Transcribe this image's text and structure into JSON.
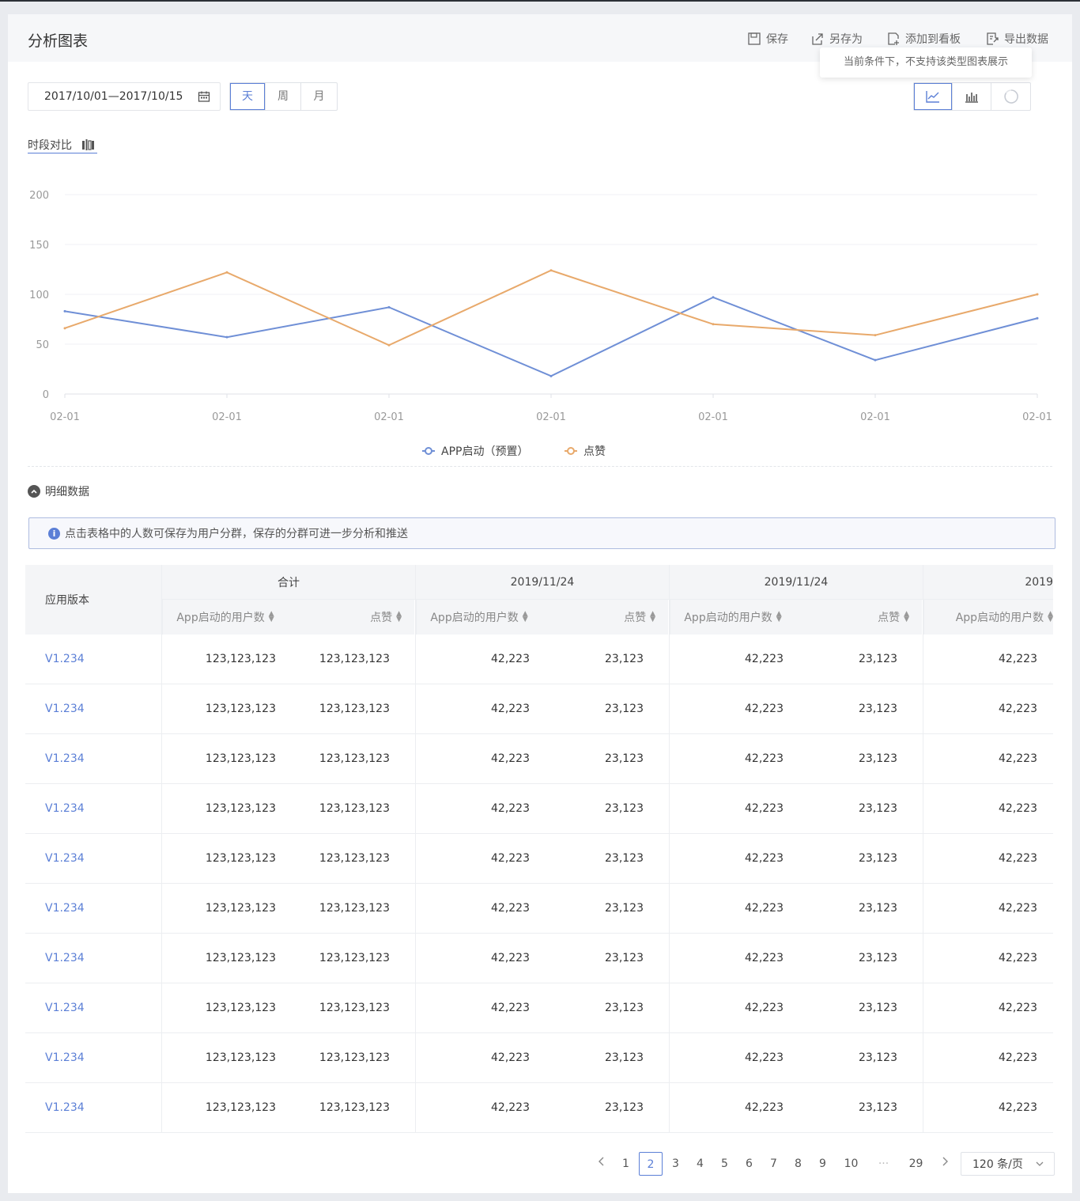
{
  "header": {
    "title": "分析图表",
    "actions": [
      {
        "label": "保存",
        "icon": "save-icon"
      },
      {
        "label": "另存为",
        "icon": "share-icon"
      },
      {
        "label": "添加到看板",
        "icon": "add-board-icon"
      },
      {
        "label": "导出数据",
        "icon": "export-icon"
      }
    ],
    "tooltip": "当前条件下，不支持该类型图表展示"
  },
  "toolbar": {
    "date_range": "2017/10/01—2017/10/15",
    "granularity": [
      {
        "label": "天",
        "active": true
      },
      {
        "label": "周",
        "active": false
      },
      {
        "label": "月",
        "active": false
      }
    ],
    "chart_types": [
      "line-chart-icon",
      "bar-chart-icon",
      "pie-chart-icon"
    ],
    "compare_label": "时段对比"
  },
  "chart_data": {
    "type": "line",
    "x": [
      "02-01",
      "02-01",
      "02-01",
      "02-01",
      "02-01",
      "02-01",
      "02-01"
    ],
    "ylim": [
      0,
      200
    ],
    "y_ticks": [
      0,
      50,
      100,
      150,
      200
    ],
    "grid": true,
    "legend_position": "bottom",
    "series": [
      {
        "name": "APP启动（预置）",
        "color": "#6f8fd6",
        "values": [
          83,
          57,
          87,
          18,
          97,
          34,
          76
        ]
      },
      {
        "name": "点赞",
        "color": "#e8a96b",
        "values": [
          66,
          122,
          49,
          124,
          70,
          59,
          100
        ]
      }
    ]
  },
  "detail": {
    "toggle_label": "明细数据",
    "info": "点击表格中的人数可保存为用户分群，保存的分群可进一步分析和推送"
  },
  "table": {
    "first_col_header": "应用版本",
    "groups": [
      "合计",
      "2019/11/24",
      "2019/11/24",
      "2019"
    ],
    "sub_headers": [
      "App启动的用户数",
      "点赞",
      "App启动的用户数",
      "点赞",
      "App启动的用户数",
      "点赞",
      "App启动的用户数"
    ],
    "rows": [
      [
        "V1.234",
        "123,123,123",
        "123,123,123",
        "42,223",
        "23,123",
        "42,223",
        "23,123",
        "42,223"
      ],
      [
        "V1.234",
        "123,123,123",
        "123,123,123",
        "42,223",
        "23,123",
        "42,223",
        "23,123",
        "42,223"
      ],
      [
        "V1.234",
        "123,123,123",
        "123,123,123",
        "42,223",
        "23,123",
        "42,223",
        "23,123",
        "42,223"
      ],
      [
        "V1.234",
        "123,123,123",
        "123,123,123",
        "42,223",
        "23,123",
        "42,223",
        "23,123",
        "42,223"
      ],
      [
        "V1.234",
        "123,123,123",
        "123,123,123",
        "42,223",
        "23,123",
        "42,223",
        "23,123",
        "42,223"
      ],
      [
        "V1.234",
        "123,123,123",
        "123,123,123",
        "42,223",
        "23,123",
        "42,223",
        "23,123",
        "42,223"
      ],
      [
        "V1.234",
        "123,123,123",
        "123,123,123",
        "42,223",
        "23,123",
        "42,223",
        "23,123",
        "42,223"
      ],
      [
        "V1.234",
        "123,123,123",
        "123,123,123",
        "42,223",
        "23,123",
        "42,223",
        "23,123",
        "42,223"
      ],
      [
        "V1.234",
        "123,123,123",
        "123,123,123",
        "42,223",
        "23,123",
        "42,223",
        "23,123",
        "42,223"
      ],
      [
        "V1.234",
        "123,123,123",
        "123,123,123",
        "42,223",
        "23,123",
        "42,223",
        "23,123",
        "42,223"
      ]
    ]
  },
  "pagination": {
    "pages": [
      "1",
      "2",
      "3",
      "4",
      "5",
      "6",
      "7",
      "8",
      "9",
      "10",
      "···",
      "29"
    ],
    "current": "2",
    "page_size": "120 条/页"
  },
  "colors": {
    "accent": "#5b7fd6",
    "series_blue": "#6f8fd6",
    "series_orange": "#e8a96b"
  }
}
